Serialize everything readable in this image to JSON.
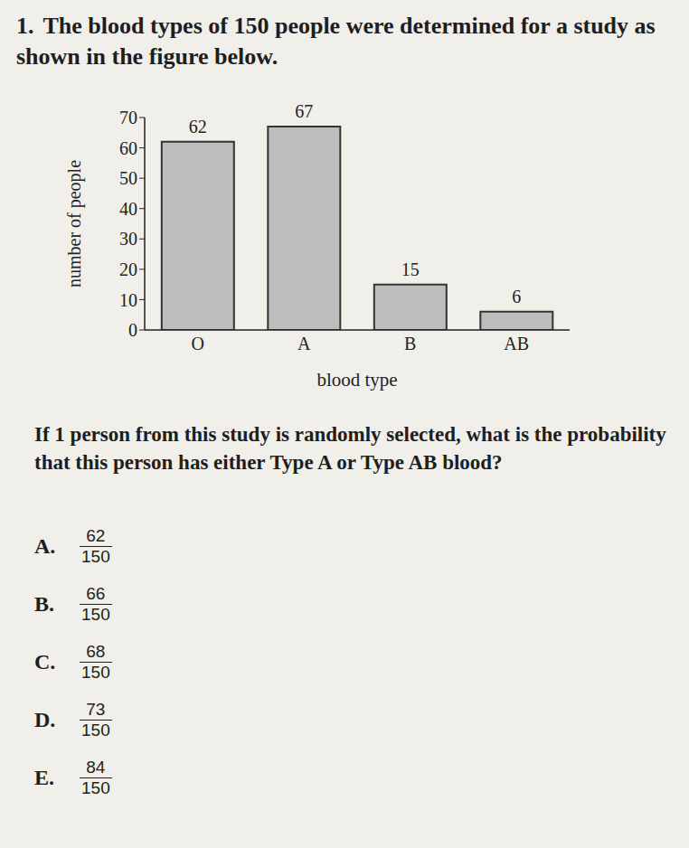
{
  "problem": {
    "number": "1.",
    "text": "The blood types of 150 people were determined for a study as shown in the figure below."
  },
  "chart_data": {
    "type": "bar",
    "categories": [
      "O",
      "A",
      "B",
      "AB"
    ],
    "values": [
      62,
      67,
      15,
      6
    ],
    "color": "#bdbdbd",
    "x_label": "blood type",
    "y_label": "number of people",
    "ylim": [
      0,
      70
    ],
    "yticks": [
      0,
      10,
      20,
      30,
      40,
      50,
      60,
      70
    ],
    "grid": false,
    "data_labels": true
  },
  "question": "If 1 person from this study is randomly selected, what is the probability that this person has either Type A or Type AB blood?",
  "choices": [
    {
      "letter": "A.",
      "numerator": 62,
      "denominator": 150
    },
    {
      "letter": "B.",
      "numerator": 66,
      "denominator": 150
    },
    {
      "letter": "C.",
      "numerator": 68,
      "denominator": 150
    },
    {
      "letter": "D.",
      "numerator": 73,
      "denominator": 150
    },
    {
      "letter": "E.",
      "numerator": 84,
      "denominator": 150
    }
  ]
}
